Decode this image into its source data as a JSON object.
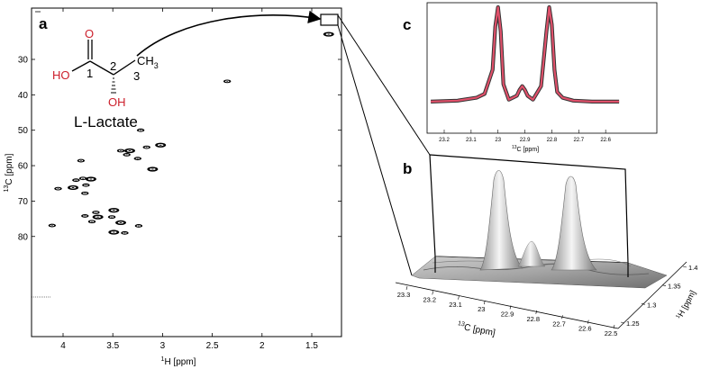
{
  "panels": {
    "a": {
      "label": "a",
      "xlabel_sup": "1",
      "xlabel_main": "H [ppm]",
      "ylabel_sup": "13",
      "ylabel_main": "C [ppm]",
      "x_ticks": [
        "4",
        "3.5",
        "3",
        "2.5",
        "2",
        "1.5"
      ],
      "y_ticks": [
        "30",
        "40",
        "50",
        "60",
        "70",
        "80"
      ],
      "molecule": {
        "name": "L-Lactate",
        "atoms": {
          "O_carbonyl": "O",
          "HO": "HO",
          "OH": "OH",
          "CH3": "CH",
          "CH3_sub": "3"
        },
        "numbers": [
          "1",
          "2",
          "3"
        ],
        "heteroatom_color": "#cc1f2b"
      }
    },
    "b": {
      "label": "b",
      "xlabel_sup": "13",
      "xlabel_main": "C [ppm]",
      "ylabel_sup": "1",
      "ylabel_main": "H [ppm]",
      "x_ticks": [
        "23.3",
        "23.2",
        "23.1",
        "23",
        "22.9",
        "22.8",
        "22.7",
        "22.6",
        "22.5"
      ],
      "y_ticks": [
        "1.25",
        "1.3",
        "1.35",
        "1.4"
      ]
    },
    "c": {
      "label": "c",
      "xlabel_sup": "13",
      "xlabel_main": "C [ppm]",
      "x_ticks": [
        "23.2",
        "23.1",
        "23",
        "22.9",
        "22.8",
        "22.7",
        "22.6"
      ],
      "trace_color": "#e0506a",
      "outline_color": "#333333"
    }
  },
  "chart_data": [
    {
      "type": "scatter",
      "panel": "a",
      "x_axis": "1H chemical shift",
      "y_axis": "13C chemical shift",
      "xlim": [
        4.3,
        0.95
      ],
      "ylim": [
        22,
        82
      ],
      "peaks": [
        {
          "x": 1.33,
          "y": 22.9
        },
        {
          "x": 2.35,
          "y": 36.2
        },
        {
          "x": 3.22,
          "y": 50.0
        },
        {
          "x": 3.02,
          "y": 54.2
        },
        {
          "x": 3.16,
          "y": 54.8
        },
        {
          "x": 3.42,
          "y": 55.8
        },
        {
          "x": 3.33,
          "y": 55.8
        },
        {
          "x": 3.36,
          "y": 56.9
        },
        {
          "x": 3.25,
          "y": 58.0
        },
        {
          "x": 3.1,
          "y": 61.0
        },
        {
          "x": 3.82,
          "y": 58.6
        },
        {
          "x": 3.8,
          "y": 63.6
        },
        {
          "x": 3.72,
          "y": 63.8
        },
        {
          "x": 3.87,
          "y": 64.1
        },
        {
          "x": 3.77,
          "y": 65.5
        },
        {
          "x": 3.9,
          "y": 66.2
        },
        {
          "x": 4.05,
          "y": 66.5
        },
        {
          "x": 3.78,
          "y": 67.8
        },
        {
          "x": 3.49,
          "y": 72.6
        },
        {
          "x": 3.67,
          "y": 73.2
        },
        {
          "x": 3.78,
          "y": 74.2
        },
        {
          "x": 3.65,
          "y": 74.5
        },
        {
          "x": 3.51,
          "y": 74.5
        },
        {
          "x": 3.71,
          "y": 75.8
        },
        {
          "x": 3.42,
          "y": 76.1
        },
        {
          "x": 4.11,
          "y": 76.9
        },
        {
          "x": 3.24,
          "y": 77.0
        },
        {
          "x": 3.49,
          "y": 78.8
        },
        {
          "x": 3.38,
          "y": 79.0
        }
      ]
    },
    {
      "type": "line",
      "panel": "c",
      "x_axis": "13C chemical shift",
      "xlim": [
        23.25,
        22.55
      ],
      "description_series": [
        {
          "x": [
            23.25,
            23.15,
            23.08,
            23.05,
            23.02,
            23.01,
            23.0,
            22.99,
            22.98,
            22.96,
            22.93,
            22.92,
            22.91,
            22.9,
            22.89,
            22.87,
            22.84,
            22.82,
            22.81,
            22.8,
            22.79,
            22.78,
            22.76,
            22.72,
            22.65,
            22.55
          ],
          "y": [
            0.02,
            0.03,
            0.06,
            0.1,
            0.35,
            0.8,
            1.0,
            0.75,
            0.2,
            0.04,
            0.08,
            0.14,
            0.18,
            0.14,
            0.08,
            0.04,
            0.18,
            0.75,
            1.0,
            0.82,
            0.35,
            0.12,
            0.06,
            0.03,
            0.02,
            0.02
          ]
        }
      ]
    }
  ]
}
